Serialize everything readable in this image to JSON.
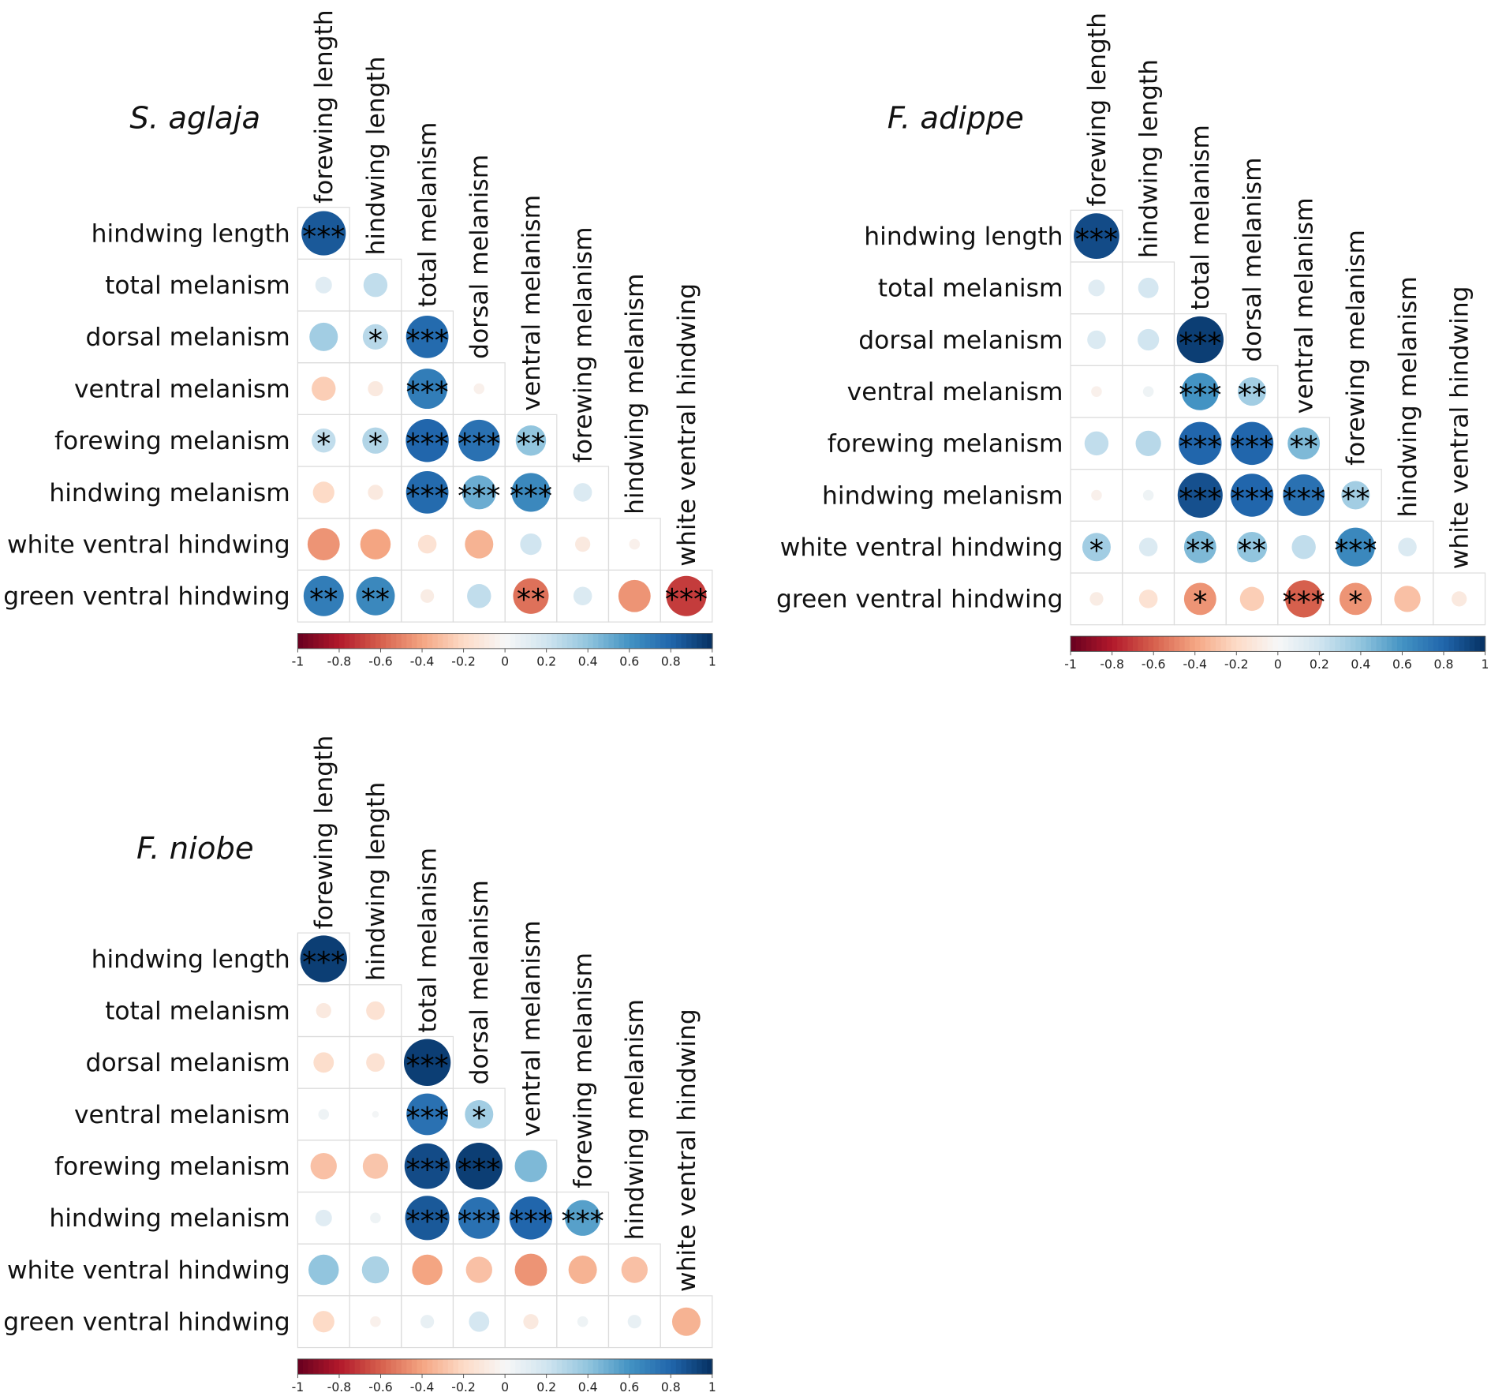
{
  "chart_data": [
    {
      "type": "heatmap",
      "title": "S. aglaja",
      "variables": [
        "forewing length",
        "hindwing length",
        "total melanism",
        "dorsal melanism",
        "ventral melanism",
        "forewing melanism",
        "hindwing melanism",
        "white ventral hindwing",
        "green ventral hindwing"
      ],
      "row_labels": [
        "hindwing length",
        "total melanism",
        "dorsal melanism",
        "ventral melanism",
        "forewing melanism",
        "hindwing melanism",
        "white ventral hindwing",
        "green ventral hindwing"
      ],
      "col_labels": [
        "forewing length",
        "hindwing length",
        "total melanism",
        "dorsal melanism",
        "ventral melanism",
        "forewing melanism",
        "hindwing melanism",
        "white ventral hindwing"
      ],
      "values": [
        [
          0.85
        ],
        [
          0.12,
          0.25
        ],
        [
          0.35,
          0.28,
          0.78
        ],
        [
          -0.25,
          -0.1,
          0.7,
          -0.05
        ],
        [
          0.25,
          0.3,
          0.8,
          0.75,
          0.4
        ],
        [
          -0.2,
          -0.1,
          0.78,
          0.5,
          0.65,
          0.15
        ],
        [
          -0.45,
          -0.4,
          -0.15,
          -0.35,
          0.2,
          -0.1,
          -0.05
        ],
        [
          0.7,
          0.65,
          -0.08,
          0.25,
          -0.55,
          0.15,
          -0.45,
          -0.7
        ]
      ],
      "significance": [
        [
          "***"
        ],
        [
          "",
          ""
        ],
        [
          "",
          "*",
          "***"
        ],
        [
          "",
          "",
          "***",
          ""
        ],
        [
          "*",
          "*",
          "***",
          "***",
          "**"
        ],
        [
          "",
          "",
          "***",
          "***",
          "***",
          ""
        ],
        [
          "",
          "",
          "",
          "",
          "",
          "",
          ""
        ],
        [
          "**",
          "**",
          "",
          "",
          "**",
          "",
          "",
          "***"
        ]
      ],
      "colorbar_ticks": [
        "-1",
        "-0.8",
        "-0.6",
        "-0.4",
        "-0.2",
        "0",
        "0.2",
        "0.4",
        "0.6",
        "0.8",
        "1"
      ],
      "color_range": [
        -1,
        1
      ]
    },
    {
      "type": "heatmap",
      "title": "F. adippe",
      "variables": [
        "forewing length",
        "hindwing length",
        "total melanism",
        "dorsal melanism",
        "ventral melanism",
        "forewing melanism",
        "hindwing melanism",
        "white ventral hindwing",
        "green ventral hindwing"
      ],
      "row_labels": [
        "hindwing length",
        "total melanism",
        "dorsal melanism",
        "ventral melanism",
        "forewing melanism",
        "hindwing melanism",
        "white ventral hindwing",
        "green ventral hindwing"
      ],
      "col_labels": [
        "forewing length",
        "hindwing length",
        "total melanism",
        "dorsal melanism",
        "ventral melanism",
        "forewing melanism",
        "hindwing melanism",
        "white ventral hindwing"
      ],
      "values": [
        [
          0.9
        ],
        [
          0.12,
          0.18
        ],
        [
          0.15,
          0.2,
          0.95
        ],
        [
          -0.05,
          0.05,
          0.6,
          0.35
        ],
        [
          0.25,
          0.28,
          0.8,
          0.8,
          0.45
        ],
        [
          -0.05,
          0.05,
          0.88,
          0.8,
          0.75,
          0.35
        ],
        [
          0.35,
          0.15,
          0.45,
          0.4,
          0.25,
          0.65,
          0.15
        ],
        [
          -0.08,
          -0.15,
          -0.45,
          -0.25,
          -0.6,
          -0.45,
          -0.3,
          -0.1
        ]
      ],
      "significance": [
        [
          "***"
        ],
        [
          "",
          ""
        ],
        [
          "",
          "",
          "***"
        ],
        [
          "",
          "",
          "***",
          "**"
        ],
        [
          "",
          "",
          "***",
          "***",
          "**"
        ],
        [
          "",
          "",
          "***",
          "***",
          "***",
          "**"
        ],
        [
          "*",
          "",
          "**",
          "**",
          "",
          "***",
          ""
        ],
        [
          "",
          "",
          "*",
          "",
          "***",
          "*",
          "",
          ""
        ]
      ],
      "colorbar_ticks": [
        "-1",
        "-0.8",
        "-0.6",
        "-0.4",
        "-0.2",
        "0",
        "0.2",
        "0.4",
        "0.6",
        "0.8",
        "1"
      ],
      "color_range": [
        -1,
        1
      ]
    },
    {
      "type": "heatmap",
      "title": "F. niobe",
      "variables": [
        "forewing length",
        "hindwing length",
        "total melanism",
        "dorsal melanism",
        "ventral melanism",
        "forewing melanism",
        "hindwing melanism",
        "white ventral hindwing",
        "green ventral hindwing"
      ],
      "row_labels": [
        "hindwing length",
        "total melanism",
        "dorsal melanism",
        "ventral melanism",
        "forewing melanism",
        "hindwing melanism",
        "white ventral hindwing",
        "green ventral hindwing"
      ],
      "col_labels": [
        "forewing length",
        "hindwing length",
        "total melanism",
        "dorsal melanism",
        "ventral melanism",
        "forewing melanism",
        "hindwing melanism",
        "white ventral hindwing"
      ],
      "values": [
        [
          0.95
        ],
        [
          -0.1,
          -0.15
        ],
        [
          -0.18,
          -0.15,
          0.95
        ],
        [
          0.05,
          0.02,
          0.75,
          0.35
        ],
        [
          -0.3,
          -0.28,
          0.9,
          0.95,
          0.45
        ],
        [
          0.12,
          0.05,
          0.85,
          0.75,
          0.8,
          0.55
        ],
        [
          0.4,
          0.32,
          -0.4,
          -0.3,
          -0.45,
          -0.35,
          -0.3
        ],
        [
          -0.2,
          -0.05,
          0.08,
          0.18,
          -0.1,
          0.05,
          0.08,
          -0.35
        ]
      ],
      "significance": [
        [
          "***"
        ],
        [
          "",
          ""
        ],
        [
          "",
          "",
          "***"
        ],
        [
          "",
          "",
          "***",
          "*"
        ],
        [
          "",
          "",
          "***",
          "***",
          ""
        ],
        [
          "",
          "",
          "***",
          "***",
          "***",
          "***"
        ],
        [
          "",
          "",
          "",
          "",
          "",
          "",
          ""
        ],
        [
          "",
          "",
          "",
          "",
          "",
          "",
          "",
          ""
        ]
      ],
      "colorbar_ticks": [
        "-1",
        "-0.8",
        "-0.6",
        "-0.4",
        "-0.2",
        "0",
        "0.2",
        "0.4",
        "0.6",
        "0.8",
        "1"
      ],
      "color_range": [
        -1,
        1
      ]
    }
  ]
}
